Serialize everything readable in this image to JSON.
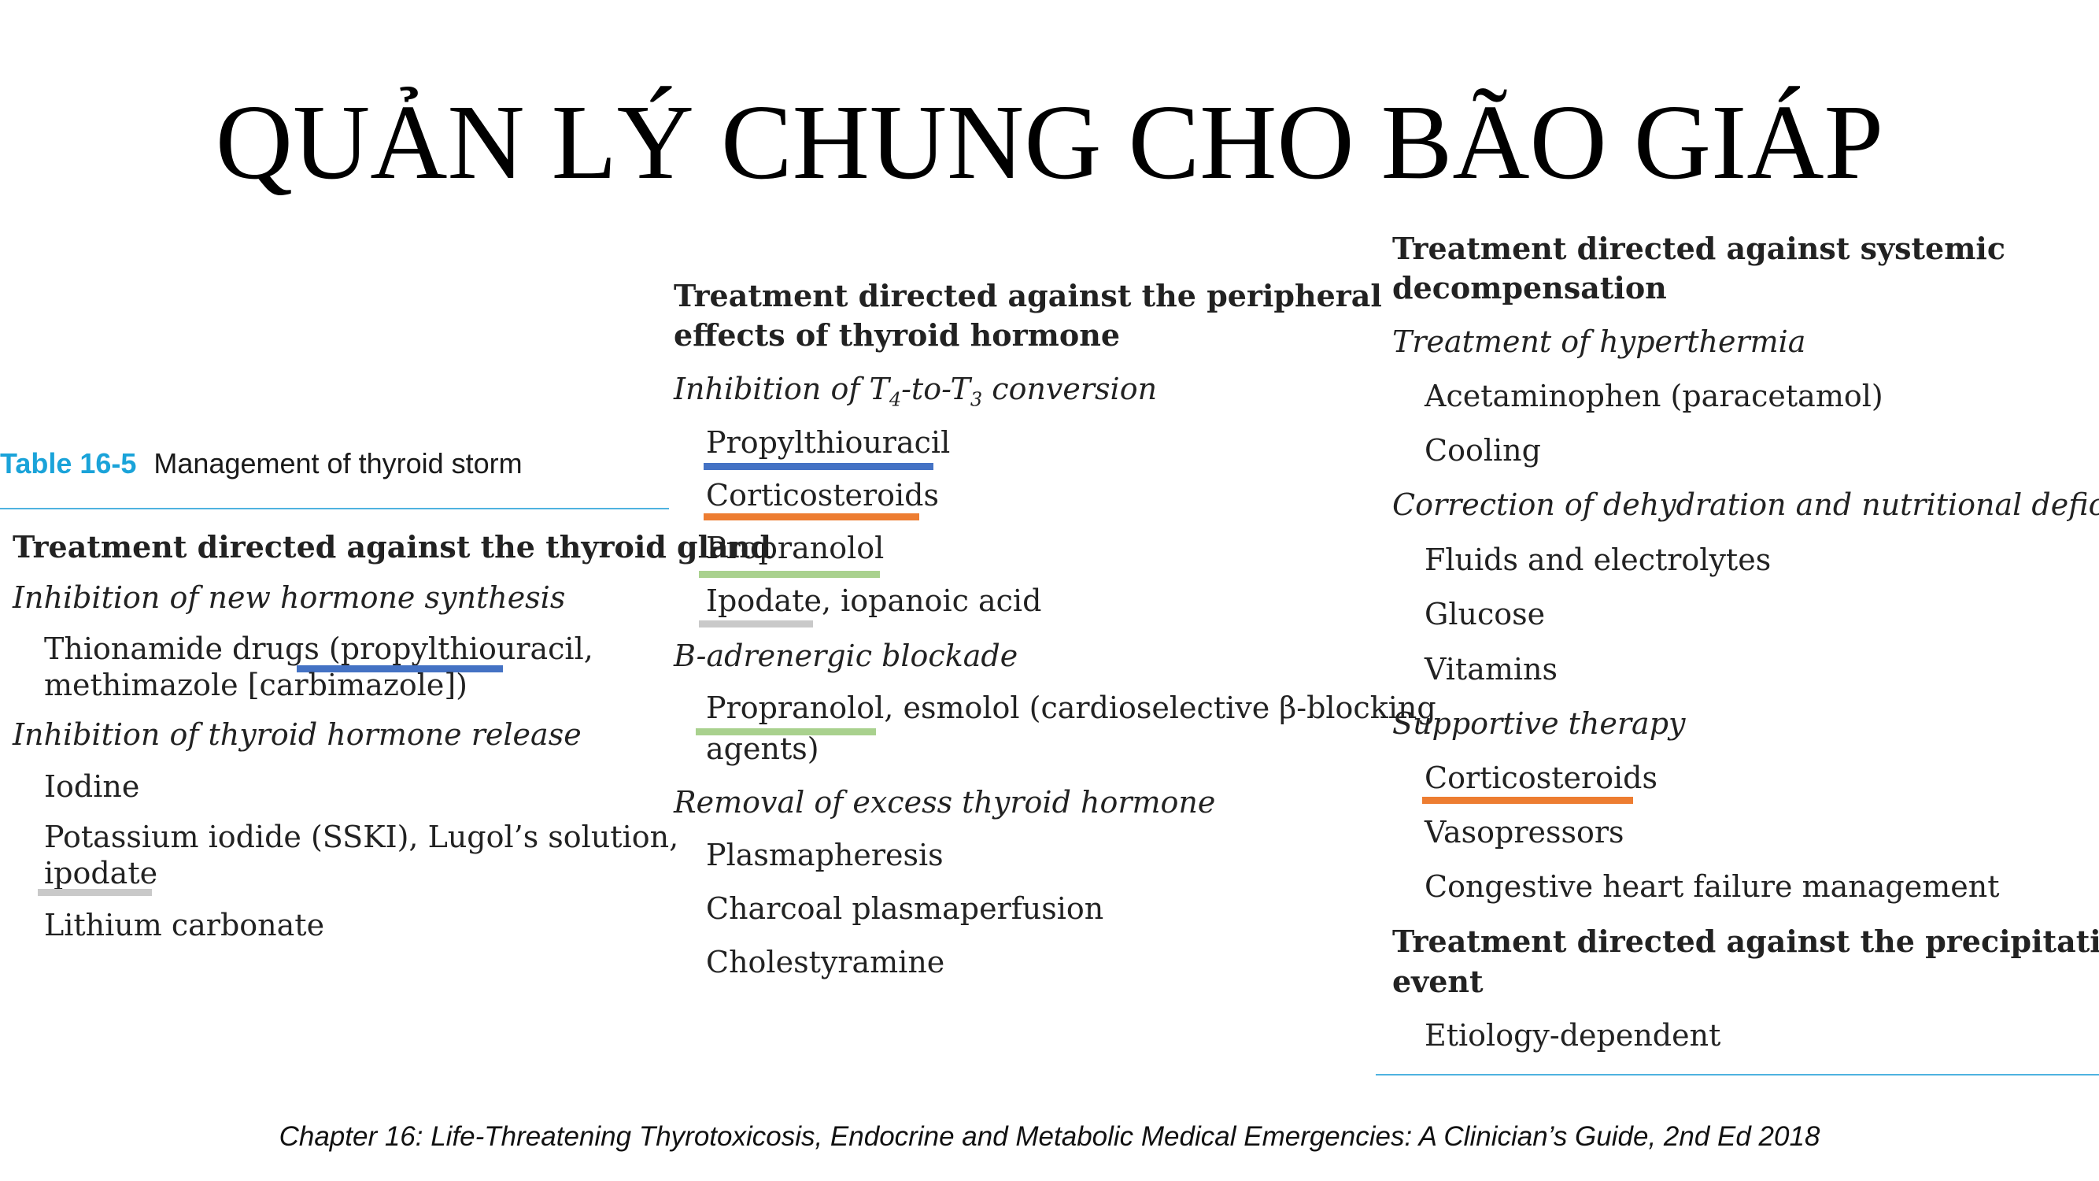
{
  "title": "QUẢN LÝ CHUNG CHO BÃO GIÁP",
  "table": {
    "number": "Table 16-5",
    "caption": "Management of thyroid storm"
  },
  "col1": {
    "heading": "Treatment directed against the thyroid gland",
    "sub1": "Inhibition of new hormone synthesis",
    "thio_line1": "Thionamide drugs (propylthiouracil,",
    "thio_line2": "methimazole [carbimazole])",
    "sub2": "Inhibition of thyroid hormone release",
    "iodine": "Iodine",
    "potassium_line1": "Potassium iodide (SSKI), Lugol’s solution,",
    "potassium_line2": "ipodate",
    "lithium": "Lithium carbonate"
  },
  "col2": {
    "heading_line1": "Treatment directed against the peripheral",
    "heading_line2": "effects of thyroid hormone",
    "sub1_a": "Inhibition of T",
    "sub1_sub4": "4",
    "sub1_b": "-to-T",
    "sub1_sub3": "3",
    "sub1_c": " conversion",
    "ptu": "Propylthiouracil",
    "cortico": "Corticosteroids",
    "propranolol": "Propranolol",
    "ipodate": "Ipodate, iopanoic acid",
    "sub2": "B-adrenergic blockade",
    "prop_esmolol_line1": "Propranolol, esmolol (cardioselective β-blocking",
    "prop_esmolol_line2": "agents)",
    "sub3": "Removal of excess thyroid hormone",
    "plasmapheresis": "Plasmapheresis",
    "charcoal": "Charcoal plasmaperfusion",
    "cholestyramine": "Cholestyramine"
  },
  "col3": {
    "heading_line1": "Treatment directed against systemic",
    "heading_line2": "decompensation",
    "sub1": "Treatment of hyperthermia",
    "acetaminophen": "Acetaminophen (paracetamol)",
    "cooling": "Cooling",
    "sub2": "Correction of dehydration and nutritional deficit",
    "fluids": "Fluids and electrolytes",
    "glucose": "Glucose",
    "vitamins": "Vitamins",
    "sub3": "Supportive therapy",
    "cortico": "Corticosteroids",
    "vasopressors": "Vasopressors",
    "chf": "Congestive heart failure management",
    "heading2_line1": "Treatment directed against the precipitating",
    "heading2_line2": "event",
    "etiology": "Etiology-dependent"
  },
  "footer": "Chapter 16: Life-Threatening Thyrotoxicosis, Endocrine and Metabolic Medical Emergencies: A Clinician’s Guide, 2nd Ed 2018",
  "highlight_colors": {
    "blue": "#4472c4",
    "orange": "#ed7d31",
    "green": "#a9d18e",
    "gray": "#c9c9c9",
    "table_accent": "#1aa3d9"
  }
}
